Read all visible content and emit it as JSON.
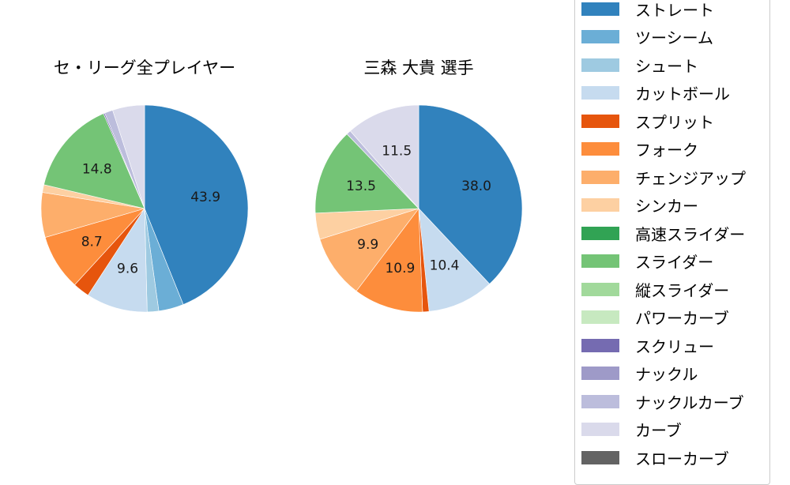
{
  "chart_data": [
    {
      "type": "pie",
      "title": "セ・リーグ全プレイヤー",
      "center": [
        183,
        264
      ],
      "radius": 131,
      "start_angle": "12 o'clock, clockwise",
      "categories": [
        "ストレート",
        "ツーシーム",
        "シュート",
        "カットボール",
        "スプリット",
        "フォーク",
        "チェンジアップ",
        "シンカー",
        "スライダー",
        "スクリュー",
        "ナックルカーブ",
        "カーブ"
      ],
      "values": [
        43.9,
        3.9,
        1.8,
        9.6,
        2.6,
        8.7,
        7.0,
        1.2,
        14.8,
        0.2,
        1.3,
        5.0
      ],
      "labeled_values": {
        "ストレート": 43.9,
        "カットボール": 9.6,
        "フォーク": 8.7,
        "スライダー": 14.8
      }
    },
    {
      "type": "pie",
      "title": "三森 大貴  選手",
      "center": [
        530,
        264
      ],
      "radius": 131,
      "start_angle": "12 o'clock, clockwise",
      "categories": [
        "ストレート",
        "カットボール",
        "スプリット",
        "フォーク",
        "チェンジアップ",
        "シンカー",
        "スライダー",
        "ナックルカーブ",
        "カーブ"
      ],
      "values": [
        38.0,
        10.4,
        1.0,
        10.9,
        9.9,
        4.1,
        13.5,
        0.7,
        11.5
      ],
      "labeled_values": {
        "ストレート": 38.0,
        "カットボール": 10.4,
        "フォーク": 10.9,
        "チェンジアップ": 9.9,
        "スライダー": 13.5,
        "カーブ": 11.5
      }
    }
  ],
  "legend": {
    "items": [
      {
        "label": "ストレート",
        "color": "#3182bd"
      },
      {
        "label": "ツーシーム",
        "color": "#6baed6"
      },
      {
        "label": "シュート",
        "color": "#9ecae1"
      },
      {
        "label": "カットボール",
        "color": "#c6dbef"
      },
      {
        "label": "スプリット",
        "color": "#e6550d"
      },
      {
        "label": "フォーク",
        "color": "#fd8d3c"
      },
      {
        "label": "チェンジアップ",
        "color": "#fdae6b"
      },
      {
        "label": "シンカー",
        "color": "#fdd0a2"
      },
      {
        "label": "高速スライダー",
        "color": "#31a354"
      },
      {
        "label": "スライダー",
        "color": "#74c476"
      },
      {
        "label": "縦スライダー",
        "color": "#a1d99b"
      },
      {
        "label": "パワーカーブ",
        "color": "#c7e9c0"
      },
      {
        "label": "スクリュー",
        "color": "#756bb1"
      },
      {
        "label": "ナックル",
        "color": "#9e9ac8"
      },
      {
        "label": "ナックルカーブ",
        "color": "#bcbddc"
      },
      {
        "label": "カーブ",
        "color": "#dadaeb"
      },
      {
        "label": "スローカーブ",
        "color": "#636363"
      }
    ]
  },
  "titles": {
    "left": "セ・リーグ全プレイヤー",
    "right": "三森 大貴  選手"
  }
}
